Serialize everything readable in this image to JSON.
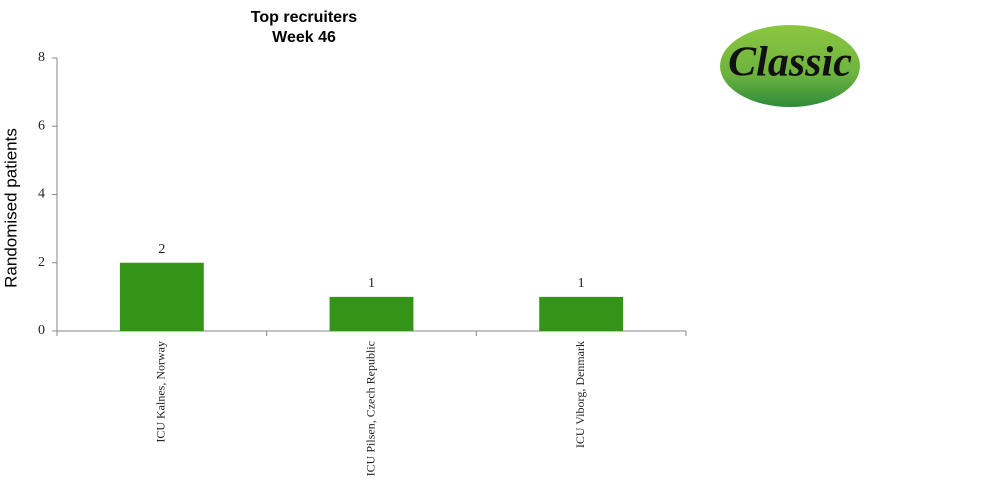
{
  "chart_data": {
    "type": "bar",
    "title": "Top recruiters",
    "subtitle": "Week 46",
    "y_label": "Randomised patients",
    "categories": [
      "ICU Kalnes, Norway",
      "ICU Pilsen, Czech Republic",
      "ICU Viborg, Denmark"
    ],
    "values": [
      2,
      1,
      1
    ],
    "color": "#339418",
    "ylim": [
      0,
      8
    ],
    "yticks": [
      0,
      2,
      4,
      6,
      8
    ]
  },
  "logo": "Classic"
}
